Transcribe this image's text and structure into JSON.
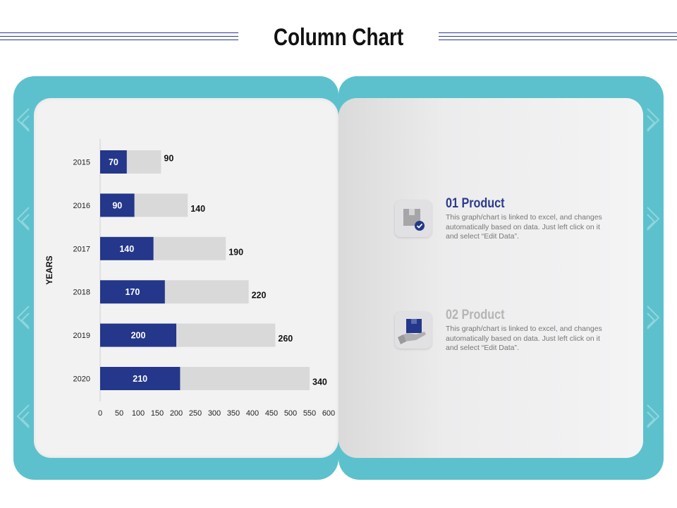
{
  "page": {
    "title": "Column Chart"
  },
  "products": [
    {
      "title": "01 Product",
      "title_color": "#2b3a8c",
      "description": "This graph/chart is linked to excel, and changes automatically based on data. Just left click on it and select “Edit Data”.",
      "icon": "box-check-icon"
    },
    {
      "title": "02 Product",
      "title_color": "#b5b5b5",
      "description": "This graph/chart is linked to excel, and changes automatically based on data. Just left click on it and select “Edit Data”.",
      "icon": "hand-box-icon"
    }
  ],
  "colors": {
    "accent": "#24378a",
    "bar_bg": "#d9d9d9",
    "frame": "#5cc1cd"
  },
  "chart_data": {
    "type": "bar",
    "orientation": "horizontal",
    "stacked": true,
    "ylabel": "YEARS",
    "categories": [
      "2015",
      "2016",
      "2017",
      "2018",
      "2019",
      "2020"
    ],
    "series": [
      {
        "values": [
          70,
          90,
          140,
          170,
          200,
          210
        ],
        "color": "#24378a"
      },
      {
        "values": [
          90,
          140,
          190,
          220,
          260,
          340
        ],
        "color": "#d9d9d9"
      }
    ],
    "x_ticks": [
      "0",
      "50",
      "100",
      "150",
      "200",
      "250",
      "300",
      "350",
      "400",
      "450",
      "500",
      "550",
      "600"
    ],
    "xlim": [
      0,
      600
    ],
    "grid": false
  }
}
